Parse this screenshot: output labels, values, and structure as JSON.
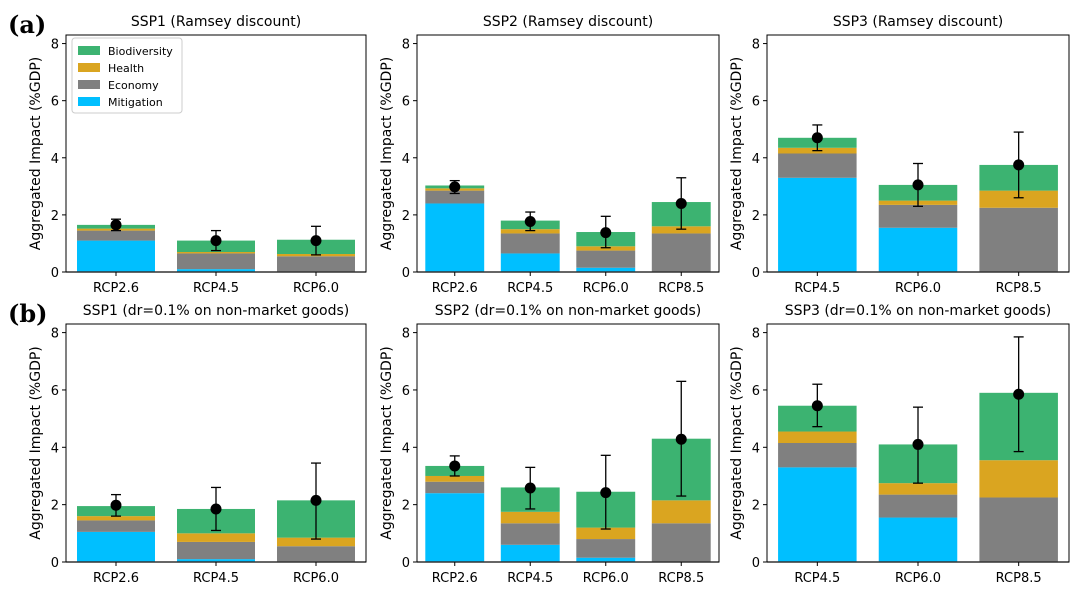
{
  "panel_labels": [
    "(a)",
    "(b)"
  ],
  "colors": {
    "Biodiversity": "#3cb371",
    "Health": "#daa520",
    "Economy": "#808080",
    "Mitigation": "#00bfff",
    "marker": "#000000"
  },
  "chart_data": [
    {
      "type": "bar",
      "title": "SSP1 (Ramsey discount)",
      "ylabel": "Aggregated Impact (%GDP)",
      "ylim": [
        0,
        8.3
      ],
      "yticks": [
        0,
        2,
        4,
        6,
        8
      ],
      "categories": [
        "RCP2.6",
        "RCP4.5",
        "RCP6.0"
      ],
      "stacked": true,
      "legend": {
        "placement": "upper-left",
        "entries": [
          "Biodiversity",
          "Health",
          "Economy",
          "Mitigation"
        ]
      },
      "series": [
        {
          "name": "Mitigation",
          "values": [
            1.1,
            0.1,
            0.0
          ]
        },
        {
          "name": "Economy",
          "values": [
            0.35,
            0.55,
            0.55
          ]
        },
        {
          "name": "Health",
          "values": [
            0.07,
            0.05,
            0.08
          ]
        },
        {
          "name": "Biodiversity",
          "values": [
            0.13,
            0.4,
            0.5
          ]
        }
      ],
      "errorbars": [
        {
          "mean": 1.65,
          "low": 1.45,
          "high": 1.85
        },
        {
          "mean": 1.1,
          "low": 0.75,
          "high": 1.45
        },
        {
          "mean": 1.1,
          "low": 0.6,
          "high": 1.6
        }
      ]
    },
    {
      "type": "bar",
      "title": "SSP2 (Ramsey discount)",
      "ylabel": "Aggregated Impact (%GDP)",
      "ylim": [
        0,
        8.3
      ],
      "yticks": [
        0,
        2,
        4,
        6,
        8
      ],
      "categories": [
        "RCP2.6",
        "RCP4.5",
        "RCP6.0",
        "RCP8.5"
      ],
      "stacked": true,
      "series": [
        {
          "name": "Mitigation",
          "values": [
            2.4,
            0.65,
            0.15,
            0.0
          ]
        },
        {
          "name": "Economy",
          "values": [
            0.45,
            0.7,
            0.6,
            1.35
          ]
        },
        {
          "name": "Health",
          "values": [
            0.08,
            0.15,
            0.15,
            0.25
          ]
        },
        {
          "name": "Biodiversity",
          "values": [
            0.1,
            0.3,
            0.5,
            0.85
          ]
        }
      ],
      "errorbars": [
        {
          "mean": 2.98,
          "low": 2.75,
          "high": 3.2
        },
        {
          "mean": 1.77,
          "low": 1.45,
          "high": 2.1
        },
        {
          "mean": 1.38,
          "low": 0.85,
          "high": 1.95
        },
        {
          "mean": 2.4,
          "low": 1.5,
          "high": 3.3
        }
      ]
    },
    {
      "type": "bar",
      "title": "SSP3 (Ramsey discount)",
      "ylabel": "Aggregated Impact (%GDP)",
      "ylim": [
        0,
        8.3
      ],
      "yticks": [
        0,
        2,
        4,
        6,
        8
      ],
      "categories": [
        "RCP4.5",
        "RCP6.0",
        "RCP8.5"
      ],
      "stacked": true,
      "series": [
        {
          "name": "Mitigation",
          "values": [
            3.3,
            1.55,
            0.0
          ]
        },
        {
          "name": "Economy",
          "values": [
            0.85,
            0.8,
            2.25
          ]
        },
        {
          "name": "Health",
          "values": [
            0.2,
            0.15,
            0.6
          ]
        },
        {
          "name": "Biodiversity",
          "values": [
            0.35,
            0.55,
            0.9
          ]
        }
      ],
      "errorbars": [
        {
          "mean": 4.7,
          "low": 4.25,
          "high": 5.15
        },
        {
          "mean": 3.05,
          "low": 2.3,
          "high": 3.8
        },
        {
          "mean": 3.75,
          "low": 2.6,
          "high": 4.9
        }
      ]
    },
    {
      "type": "bar",
      "title": "SSP1 (dr=0.1% on non-market goods)",
      "ylabel": "Aggregated Impact (%GDP)",
      "ylim": [
        0,
        8.3
      ],
      "yticks": [
        0,
        2,
        4,
        6,
        8
      ],
      "categories": [
        "RCP2.6",
        "RCP4.5",
        "RCP6.0"
      ],
      "stacked": true,
      "series": [
        {
          "name": "Mitigation",
          "values": [
            1.05,
            0.1,
            0.0
          ]
        },
        {
          "name": "Economy",
          "values": [
            0.4,
            0.6,
            0.55
          ]
        },
        {
          "name": "Health",
          "values": [
            0.15,
            0.3,
            0.3
          ]
        },
        {
          "name": "Biodiversity",
          "values": [
            0.35,
            0.85,
            1.3
          ]
        }
      ],
      "errorbars": [
        {
          "mean": 1.98,
          "low": 1.6,
          "high": 2.35
        },
        {
          "mean": 1.85,
          "low": 1.1,
          "high": 2.6
        },
        {
          "mean": 2.15,
          "low": 0.8,
          "high": 3.45
        }
      ]
    },
    {
      "type": "bar",
      "title": "SSP2 (dr=0.1% on non-market goods)",
      "ylabel": "Aggregated Impact (%GDP)",
      "ylim": [
        0,
        8.3
      ],
      "yticks": [
        0,
        2,
        4,
        6,
        8
      ],
      "categories": [
        "RCP2.6",
        "RCP4.5",
        "RCP6.0",
        "RCP8.5"
      ],
      "stacked": true,
      "series": [
        {
          "name": "Mitigation",
          "values": [
            2.4,
            0.6,
            0.15,
            0.0
          ]
        },
        {
          "name": "Economy",
          "values": [
            0.4,
            0.75,
            0.65,
            1.35
          ]
        },
        {
          "name": "Health",
          "values": [
            0.2,
            0.4,
            0.4,
            0.8
          ]
        },
        {
          "name": "Biodiversity",
          "values": [
            0.35,
            0.85,
            1.25,
            2.15
          ]
        }
      ],
      "errorbars": [
        {
          "mean": 3.35,
          "low": 3.0,
          "high": 3.7
        },
        {
          "mean": 2.58,
          "low": 1.85,
          "high": 3.3
        },
        {
          "mean": 2.42,
          "low": 1.15,
          "high": 3.72
        },
        {
          "mean": 4.28,
          "low": 2.3,
          "high": 6.3
        }
      ]
    },
    {
      "type": "bar",
      "title": "SSP3 (dr=0.1% on non-market goods)",
      "ylabel": "Aggregated Impact (%GDP)",
      "ylim": [
        0,
        8.3
      ],
      "yticks": [
        0,
        2,
        4,
        6,
        8
      ],
      "categories": [
        "RCP4.5",
        "RCP6.0",
        "RCP8.5"
      ],
      "stacked": true,
      "series": [
        {
          "name": "Mitigation",
          "values": [
            3.3,
            1.55,
            0.0
          ]
        },
        {
          "name": "Economy",
          "values": [
            0.85,
            0.8,
            2.25
          ]
        },
        {
          "name": "Health",
          "values": [
            0.4,
            0.4,
            1.3
          ]
        },
        {
          "name": "Biodiversity",
          "values": [
            0.9,
            1.35,
            2.35
          ]
        }
      ],
      "errorbars": [
        {
          "mean": 5.45,
          "low": 4.72,
          "high": 6.2
        },
        {
          "mean": 4.1,
          "low": 2.75,
          "high": 5.4
        },
        {
          "mean": 5.85,
          "low": 3.85,
          "high": 7.85
        }
      ]
    }
  ]
}
